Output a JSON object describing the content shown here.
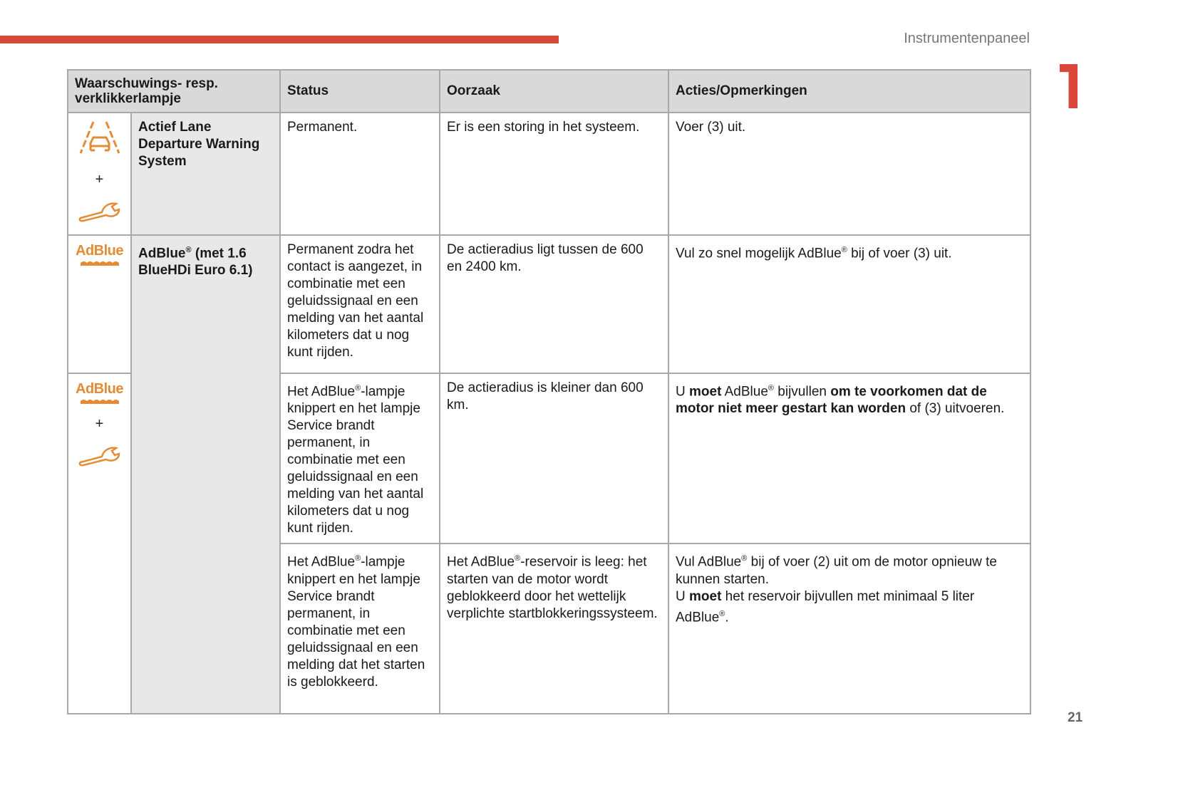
{
  "header": {
    "section_title": "Instrumentenpaneel",
    "chapter_number": "1",
    "page_number": "21",
    "accent_color": "#d9473a",
    "icon_color": "#e38b35"
  },
  "table": {
    "columns": [
      "Waarschuwings- resp. verklikkerlampje",
      "Status",
      "Oorzaak",
      "Acties/Opmerkingen"
    ],
    "rows": [
      {
        "icons": [
          "lane-departure-icon",
          "plus",
          "wrench-icon"
        ],
        "plus": "+",
        "name": "Actief Lane Departure Warning System",
        "status": "Permanent.",
        "cause": "Er is een storing in het systeem.",
        "action": "Voer (3) uit."
      },
      {
        "icons": [
          "adblue-icon"
        ],
        "adblue_label": "AdBlue",
        "name_a": "AdBlue",
        "reg": "®",
        "name_b": " (met 1.6 BlueHDi Euro 6.1)",
        "status": "Permanent zodra het contact is aangezet, in combinatie met een geluidssignaal en een melding van het aantal kilometers dat u nog kunt rijden.",
        "cause": "De actieradius ligt tussen de 600 en 2400 km.",
        "action_a": "Vul zo snel mogelijk AdBlue",
        "action_b": " bij of voer (3) uit."
      },
      {
        "icons": [
          "adblue-icon",
          "plus",
          "wrench-icon"
        ],
        "adblue_label": "AdBlue",
        "plus": "+",
        "status_a": "Het AdBlue",
        "status_b": "-lampje knippert en het lampje Service brandt permanent, in combinatie met een geluidssignaal en een melding van het aantal kilometers dat u nog kunt rijden.",
        "cause": "De actieradius is kleiner dan 600 km.",
        "action_1": "U ",
        "action_2": "moet",
        "action_3": " AdBlue",
        "action_4": " bijvullen ",
        "action_5": "om te voorkomen dat de motor niet meer gestart kan worden",
        "action_6": " of (3) uitvoeren."
      },
      {
        "status_a": "Het AdBlue",
        "status_b": "-lampje knippert en het lampje Service brandt permanent, in combinatie met een geluidssignaal en een melding dat het starten is geblokkeerd.",
        "cause_a": "Het AdBlue",
        "cause_b": "-reservoir is leeg: het starten van de motor wordt geblokkeerd door het wettelijk verplichte startblokkeringssysteem.",
        "action_1": "Vul AdBlue",
        "action_2": " bij of voer (2) uit om de motor opnieuw te kunnen starten.",
        "action_3": "U ",
        "action_4": "moet",
        "action_5": " het reservoir bijvullen met minimaal 5 liter AdBlue",
        "action_6": "."
      }
    ]
  }
}
